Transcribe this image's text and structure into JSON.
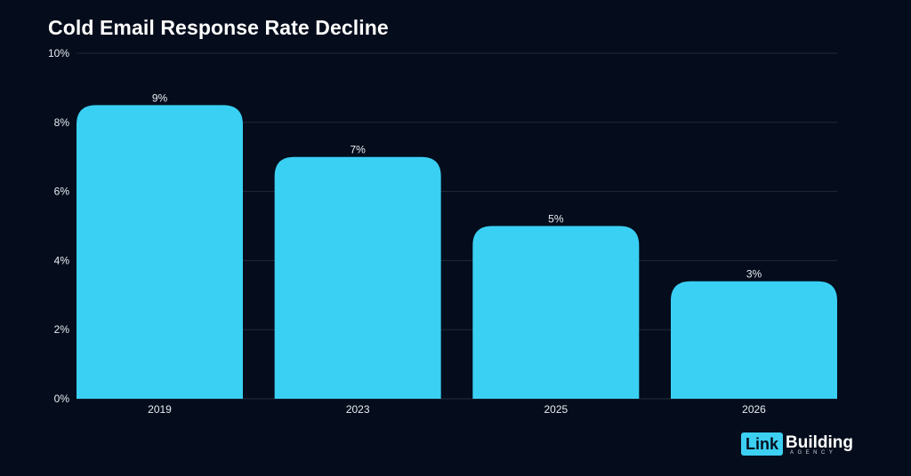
{
  "chart_data": {
    "type": "bar",
    "title": "Cold Email Response Rate Decline",
    "categories": [
      "2019",
      "2023",
      "2025",
      "2026"
    ],
    "values": [
      8.5,
      7.0,
      5.0,
      3.4
    ],
    "data_labels": [
      "9%",
      "7%",
      "5%",
      "3%"
    ],
    "ylim": [
      0,
      10
    ],
    "yticks": [
      0,
      2,
      4,
      6,
      8,
      10
    ],
    "ytick_labels": [
      "0%",
      "2%",
      "4%",
      "6%",
      "8%",
      "10%"
    ],
    "grid": true,
    "bar_color": "#3ad0f4"
  },
  "brand": {
    "logo_box": "Link",
    "logo_word": "Building",
    "logo_sub": "AGENCY"
  }
}
